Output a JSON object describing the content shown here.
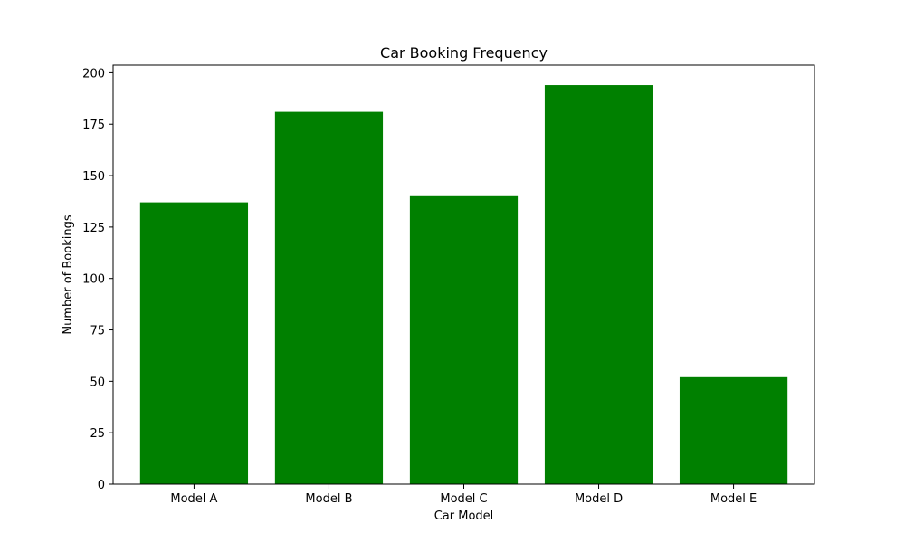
{
  "chart_data": {
    "type": "bar",
    "title": "Car Booking Frequency",
    "xlabel": "Car Model",
    "ylabel": "Number of Bookings",
    "categories": [
      "Model A",
      "Model B",
      "Model C",
      "Model D",
      "Model E"
    ],
    "values": [
      137,
      181,
      140,
      194,
      52
    ],
    "ylim": [
      0,
      203.7
    ],
    "yticks": [
      0,
      25,
      50,
      75,
      100,
      125,
      150,
      175,
      200
    ],
    "bar_color": "#008000",
    "grid": false,
    "legend": false
  }
}
